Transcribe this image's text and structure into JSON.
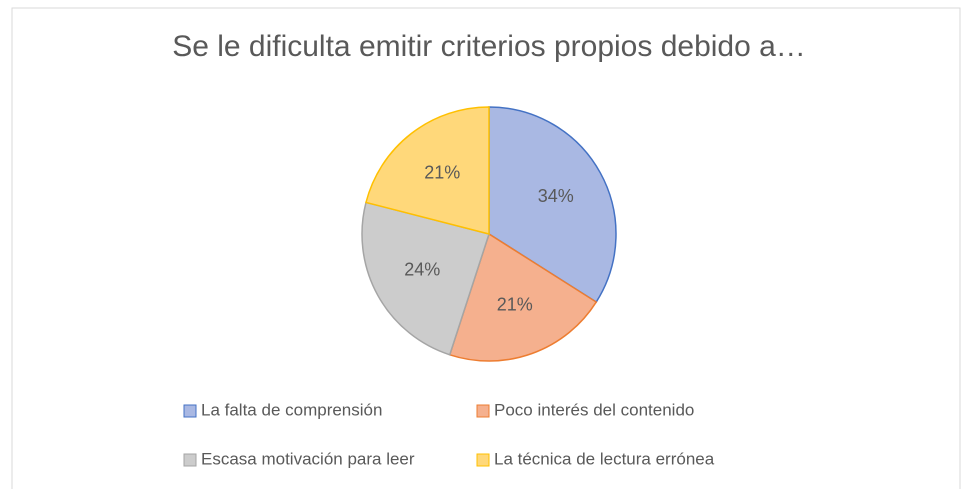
{
  "chart_data": {
    "type": "pie",
    "title": "Se le dificulta emitir criterios propios debido a…",
    "categories": [
      "La falta de comprensión",
      "Poco interés del contenido",
      "Escasa motivación para leer",
      "La técnica de lectura errónea"
    ],
    "values": [
      34,
      21,
      24,
      21
    ],
    "value_labels": [
      "34%",
      "21%",
      "24%",
      "21%"
    ],
    "colors": [
      "#a9b8e3",
      "#f5b08e",
      "#cccccc",
      "#ffd87a"
    ],
    "edge_colors": [
      "#4472c4",
      "#ed7d31",
      "#a5a5a5",
      "#ffc000"
    ],
    "legend": "bottom"
  }
}
